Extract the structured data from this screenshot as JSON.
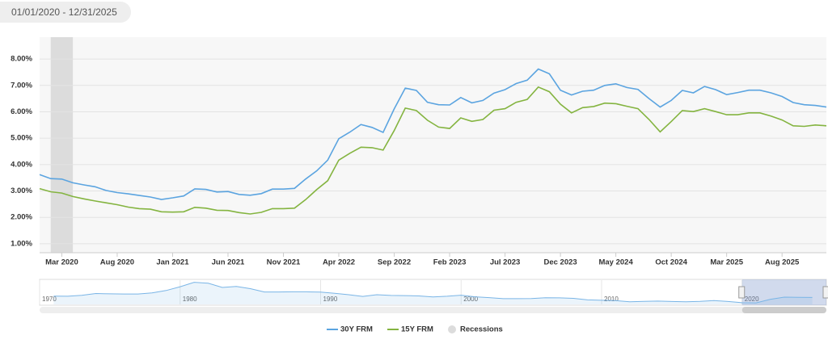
{
  "date_range": "01/01/2020 - 12/31/2025",
  "chart_data": {
    "type": "line",
    "x": [
      "2020-01",
      "2020-02",
      "2020-03",
      "2020-04",
      "2020-05",
      "2020-06",
      "2020-07",
      "2020-08",
      "2020-09",
      "2020-10",
      "2020-11",
      "2020-12",
      "2021-01",
      "2021-02",
      "2021-03",
      "2021-04",
      "2021-05",
      "2021-06",
      "2021-07",
      "2021-08",
      "2021-09",
      "2021-10",
      "2021-11",
      "2021-12",
      "2022-01",
      "2022-02",
      "2022-03",
      "2022-04",
      "2022-05",
      "2022-06",
      "2022-07",
      "2022-08",
      "2022-09",
      "2022-10",
      "2022-11",
      "2022-12",
      "2023-01",
      "2023-02",
      "2023-03",
      "2023-04",
      "2023-05",
      "2023-06",
      "2023-07",
      "2023-08",
      "2023-09",
      "2023-10",
      "2023-11",
      "2023-12",
      "2024-01",
      "2024-02",
      "2024-03",
      "2024-04",
      "2024-05",
      "2024-06",
      "2024-07",
      "2024-08",
      "2024-09",
      "2024-10",
      "2024-11",
      "2024-12",
      "2025-01",
      "2025-02",
      "2025-03",
      "2025-04",
      "2025-05",
      "2025-06",
      "2025-07",
      "2025-08",
      "2025-09",
      "2025-10",
      "2025-11",
      "2025-12"
    ],
    "series": [
      {
        "name": "30Y FRM",
        "color": "#5ba4e0",
        "values": [
          3.62,
          3.47,
          3.45,
          3.31,
          3.23,
          3.16,
          3.02,
          2.94,
          2.89,
          2.83,
          2.77,
          2.68,
          2.74,
          2.81,
          3.08,
          3.06,
          2.96,
          2.98,
          2.87,
          2.84,
          2.9,
          3.07,
          3.07,
          3.1,
          3.45,
          3.76,
          4.17,
          4.98,
          5.23,
          5.52,
          5.41,
          5.22,
          6.11,
          6.9,
          6.81,
          6.36,
          6.27,
          6.26,
          6.54,
          6.34,
          6.43,
          6.71,
          6.84,
          7.07,
          7.2,
          7.62,
          7.44,
          6.82,
          6.64,
          6.78,
          6.82,
          7.0,
          7.06,
          6.92,
          6.85,
          6.5,
          6.18,
          6.43,
          6.81,
          6.72,
          6.96,
          6.84,
          6.65,
          6.73,
          6.82,
          6.82,
          6.72,
          6.58,
          6.35,
          6.27,
          6.24,
          6.18
        ]
      },
      {
        "name": "15Y FRM",
        "color": "#84b440",
        "values": [
          3.09,
          2.97,
          2.92,
          2.79,
          2.7,
          2.62,
          2.55,
          2.48,
          2.39,
          2.33,
          2.31,
          2.21,
          2.2,
          2.21,
          2.38,
          2.35,
          2.27,
          2.26,
          2.18,
          2.13,
          2.19,
          2.33,
          2.33,
          2.35,
          2.67,
          3.05,
          3.39,
          4.17,
          4.43,
          4.66,
          4.64,
          4.55,
          5.29,
          6.14,
          6.05,
          5.68,
          5.42,
          5.37,
          5.77,
          5.64,
          5.71,
          6.06,
          6.12,
          6.36,
          6.47,
          6.94,
          6.76,
          6.29,
          5.96,
          6.16,
          6.2,
          6.33,
          6.31,
          6.21,
          6.12,
          5.71,
          5.24,
          5.63,
          6.05,
          6.01,
          6.12,
          6.01,
          5.89,
          5.89,
          5.96,
          5.96,
          5.84,
          5.69,
          5.47,
          5.45,
          5.5,
          5.47
        ]
      }
    ],
    "recessions": {
      "name": "Recessions",
      "color": "#dcdcdc",
      "periods": [
        [
          "2020-02",
          "2020-04"
        ]
      ]
    },
    "xlim": [
      "2020-01",
      "2025-12"
    ],
    "xticks": [
      {
        "value": "2020-03",
        "label": "Mar 2020"
      },
      {
        "value": "2020-08",
        "label": "Aug 2020"
      },
      {
        "value": "2021-01",
        "label": "Jan 2021"
      },
      {
        "value": "2021-06",
        "label": "Jun 2021"
      },
      {
        "value": "2021-11",
        "label": "Nov 2021"
      },
      {
        "value": "2022-04",
        "label": "Apr 2022"
      },
      {
        "value": "2022-09",
        "label": "Sep 2022"
      },
      {
        "value": "2023-02",
        "label": "Feb 2023"
      },
      {
        "value": "2023-07",
        "label": "Jul 2023"
      },
      {
        "value": "2023-12",
        "label": "Dec 2023"
      },
      {
        "value": "2024-05",
        "label": "May 2024"
      },
      {
        "value": "2024-10",
        "label": "Oct 2024"
      },
      {
        "value": "2025-03",
        "label": "Mar 2025"
      },
      {
        "value": "2025-08",
        "label": "Aug 2025"
      }
    ],
    "ylim": [
      0.66,
      8.83
    ],
    "yticks": [
      {
        "value": 1,
        "label": "1.00%"
      },
      {
        "value": 2,
        "label": "2.00%"
      },
      {
        "value": 3,
        "label": "3.00%"
      },
      {
        "value": 4,
        "label": "4.00%"
      },
      {
        "value": 5,
        "label": "5.00%"
      },
      {
        "value": 6,
        "label": "6.00%"
      },
      {
        "value": 7,
        "label": "7.00%"
      },
      {
        "value": 8,
        "label": "8.00%"
      }
    ],
    "grid": true,
    "navigator": {
      "x": [
        1971,
        1972,
        1973,
        1974,
        1975,
        1976,
        1977,
        1978,
        1979,
        1980,
        1981,
        1982,
        1983,
        1984,
        1985,
        1986,
        1987,
        1988,
        1989,
        1990,
        1991,
        1992,
        1993,
        1994,
        1995,
        1996,
        1997,
        1998,
        1999,
        2000,
        2001,
        2002,
        2003,
        2004,
        2005,
        2006,
        2007,
        2008,
        2009,
        2010,
        2011,
        2012,
        2013,
        2014,
        2015,
        2016,
        2017,
        2018,
        2019,
        2020,
        2021,
        2022,
        2023,
        2024,
        2025
      ],
      "values": [
        7.5,
        7.4,
        8.0,
        9.2,
        9.0,
        8.9,
        8.9,
        9.6,
        11.2,
        13.7,
        16.6,
        16.0,
        13.2,
        13.9,
        12.4,
        10.2,
        10.2,
        10.3,
        10.3,
        10.1,
        9.3,
        8.4,
        7.3,
        8.4,
        7.9,
        7.8,
        7.6,
        6.9,
        7.4,
        8.1,
        7.0,
        6.5,
        5.8,
        5.8,
        5.9,
        6.4,
        6.3,
        6.0,
        5.0,
        4.7,
        4.5,
        3.7,
        4.0,
        4.2,
        3.9,
        3.7,
        4.0,
        4.5,
        3.9,
        3.1,
        3.0,
        5.3,
        6.8,
        6.7,
        6.6
      ],
      "xlim": [
        1970,
        2026
      ],
      "ylim": [
        2,
        18
      ],
      "xticks": [
        1970,
        1980,
        1990,
        2000,
        2010,
        2020
      ]
    }
  }
}
